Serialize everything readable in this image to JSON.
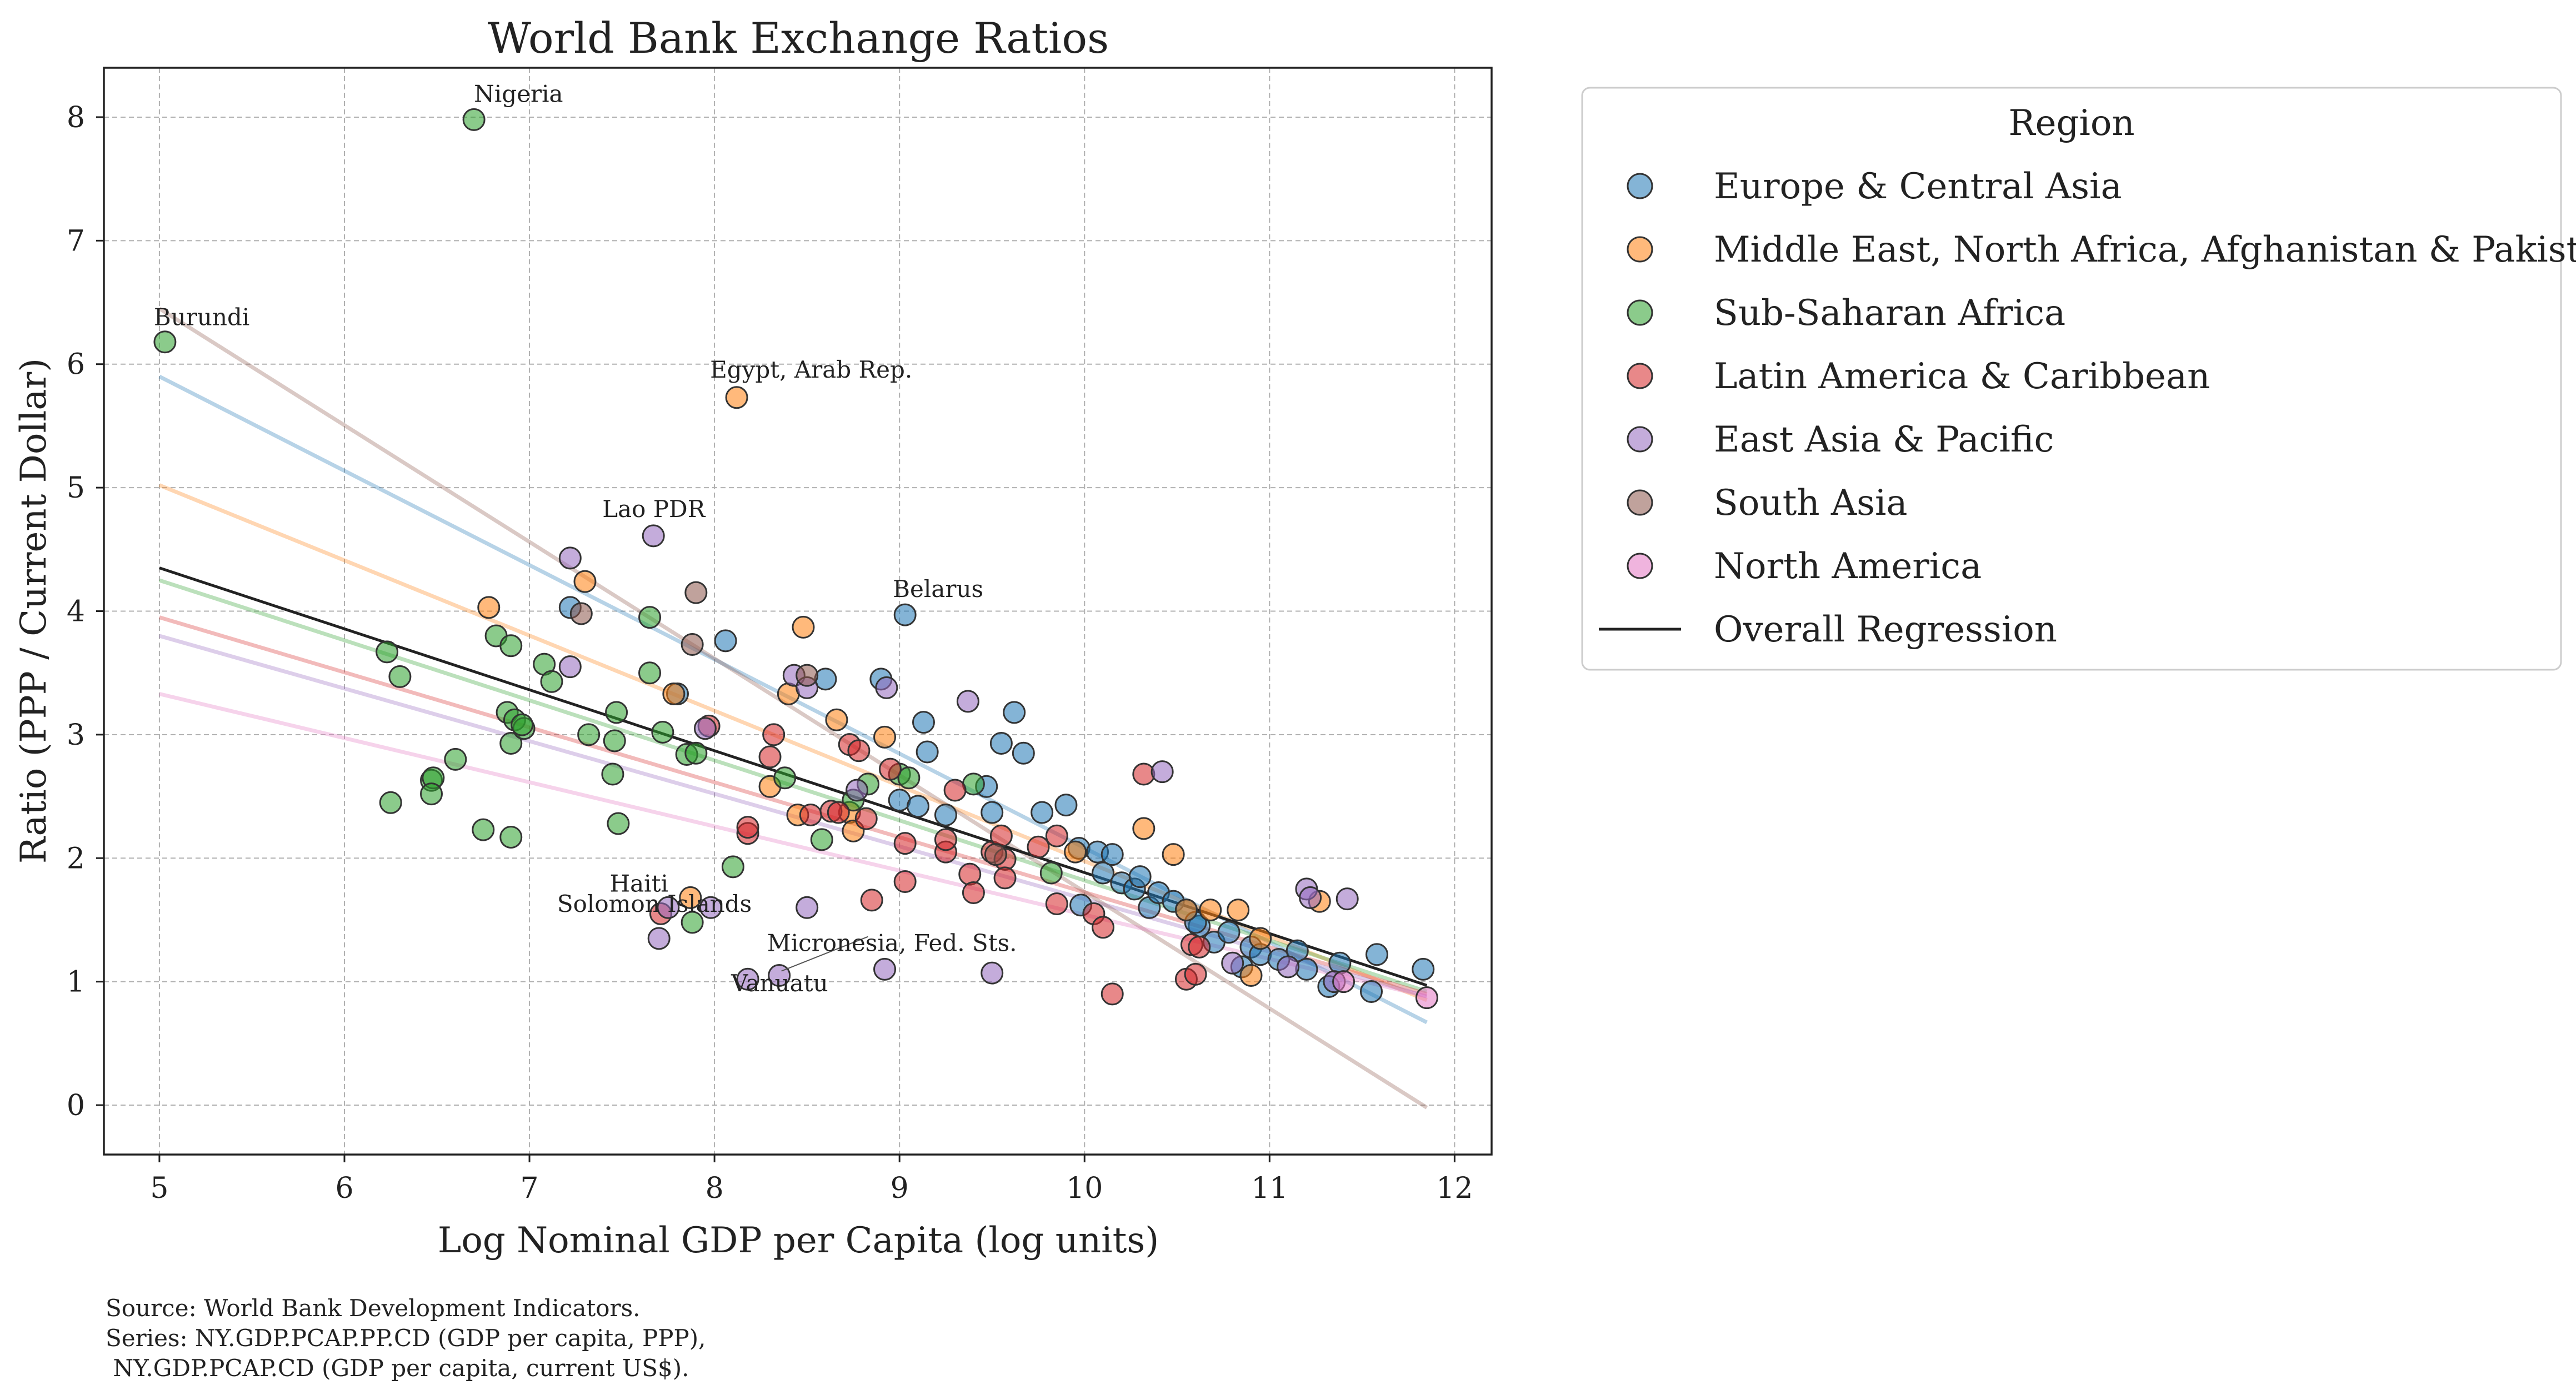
{
  "colors": {
    "europe": "#1f77b4",
    "mideast": "#ff7f0e",
    "ssa": "#2ca02c",
    "latam": "#d62728",
    "eap": "#9467bd",
    "sa": "#8c564b",
    "na": "#e377c2",
    "overall": "#222222"
  },
  "chart_data": {
    "type": "scatter",
    "title": "World Bank Exchange Ratios",
    "xlabel": "Log Nominal GDP per Capita (log units)",
    "ylabel": "Ratio (PPP / Current Dollar)",
    "xlim": [
      4.7,
      12.2
    ],
    "ylim": [
      -0.4,
      8.4
    ],
    "xticks": [
      5,
      6,
      7,
      8,
      9,
      10,
      11,
      12
    ],
    "yticks": [
      0,
      1,
      2,
      3,
      4,
      5,
      6,
      7,
      8
    ],
    "grid": true,
    "legend_title": "Region",
    "legend_position": "outside right",
    "overall_label": "Overall Regression",
    "overall_regression": {
      "x": [
        5.0,
        11.85
      ],
      "y": [
        4.35,
        0.97
      ]
    },
    "source_lines": [
      "Source: World Bank Development Indicators.",
      "Series: NY.GDP.PCAP.PP.CD (GDP per capita, PPP),",
      " NY.GDP.PCAP.CD (GDP per capita, current US$)."
    ],
    "annotations": [
      {
        "text": "Nigeria",
        "x": 6.7,
        "y": 7.98
      },
      {
        "text": "Burundi",
        "x": 5.03,
        "y": 6.18
      },
      {
        "text": "Egypt, Arab Rep.",
        "x": 8.12,
        "y": 5.73
      },
      {
        "text": "Lao PDR",
        "x": 7.67,
        "y": 4.61
      },
      {
        "text": "Belarus",
        "x": 9.03,
        "y": 3.97
      },
      {
        "text": "Haiti",
        "x": 7.71,
        "y": 1.55
      },
      {
        "text": "Solomon Islands",
        "x": 7.75,
        "y": 1.6
      },
      {
        "text": "Micronesia, Fed. Sts.",
        "x": 8.35,
        "y": 1.05
      },
      {
        "text": "Vanuatu",
        "x": 8.18,
        "y": 1.02
      }
    ],
    "series": [
      {
        "name": "Europe & Central Asia",
        "color_key": "europe",
        "regression": {
          "x": [
            5.0,
            11.85
          ],
          "y": [
            5.9,
            0.67
          ]
        },
        "points": [
          [
            7.22,
            4.03
          ],
          [
            7.8,
            3.33
          ],
          [
            8.06,
            3.76
          ],
          [
            8.6,
            3.45
          ],
          [
            8.9,
            3.45
          ],
          [
            9.03,
            3.97
          ],
          [
            9.13,
            3.1
          ],
          [
            9.15,
            2.86
          ],
          [
            9.47,
            2.58
          ],
          [
            9.55,
            2.93
          ],
          [
            9.62,
            3.18
          ],
          [
            9.67,
            2.85
          ],
          [
            9.77,
            2.37
          ],
          [
            9.9,
            2.43
          ],
          [
            9.97,
            2.08
          ],
          [
            10.07,
            2.05
          ],
          [
            10.1,
            1.88
          ],
          [
            10.15,
            2.03
          ],
          [
            10.2,
            1.8
          ],
          [
            10.27,
            1.75
          ],
          [
            10.3,
            1.85
          ],
          [
            10.35,
            1.6
          ],
          [
            10.4,
            1.72
          ],
          [
            10.48,
            1.65
          ],
          [
            10.55,
            1.58
          ],
          [
            10.62,
            1.45
          ],
          [
            10.7,
            1.32
          ],
          [
            10.78,
            1.4
          ],
          [
            10.85,
            1.12
          ],
          [
            10.9,
            1.28
          ],
          [
            10.95,
            1.22
          ],
          [
            11.05,
            1.18
          ],
          [
            11.15,
            1.25
          ],
          [
            11.2,
            1.1
          ],
          [
            11.32,
            0.96
          ],
          [
            11.38,
            1.15
          ],
          [
            11.55,
            0.92
          ],
          [
            11.58,
            1.22
          ],
          [
            11.83,
            1.1
          ],
          [
            9.0,
            2.47
          ],
          [
            9.1,
            2.42
          ],
          [
            9.25,
            2.35
          ],
          [
            9.5,
            2.37
          ],
          [
            9.98,
            1.62
          ],
          [
            10.6,
            1.48
          ]
        ]
      },
      {
        "name": "Middle East, North Africa, Afghanistan & Pakistan",
        "color_key": "mideast",
        "regression": {
          "x": [
            5.0,
            11.85
          ],
          "y": [
            5.02,
            0.85
          ]
        },
        "points": [
          [
            6.78,
            4.03
          ],
          [
            7.3,
            4.24
          ],
          [
            8.12,
            5.73
          ],
          [
            8.48,
            3.87
          ],
          [
            8.4,
            3.33
          ],
          [
            8.66,
            3.12
          ],
          [
            8.3,
            2.58
          ],
          [
            8.45,
            2.35
          ],
          [
            8.73,
            2.37
          ],
          [
            8.75,
            2.22
          ],
          [
            8.92,
            2.98
          ],
          [
            9.95,
            2.05
          ],
          [
            10.32,
            2.24
          ],
          [
            10.48,
            2.03
          ],
          [
            10.55,
            1.58
          ],
          [
            10.68,
            1.58
          ],
          [
            10.83,
            1.58
          ],
          [
            10.9,
            1.05
          ],
          [
            11.27,
            1.65
          ],
          [
            7.78,
            3.33
          ],
          [
            7.87,
            1.68
          ],
          [
            10.95,
            1.35
          ]
        ]
      },
      {
        "name": "Sub-Saharan Africa",
        "color_key": "ssa",
        "regression": {
          "x": [
            5.0,
            11.85
          ],
          "y": [
            4.25,
            0.92
          ]
        },
        "points": [
          [
            5.03,
            6.18
          ],
          [
            6.7,
            7.98
          ],
          [
            6.23,
            3.67
          ],
          [
            6.3,
            3.47
          ],
          [
            6.25,
            2.45
          ],
          [
            6.47,
            2.63
          ],
          [
            6.48,
            2.65
          ],
          [
            6.47,
            2.52
          ],
          [
            6.6,
            2.8
          ],
          [
            6.75,
            2.23
          ],
          [
            6.82,
            3.8
          ],
          [
            6.9,
            3.72
          ],
          [
            6.88,
            3.18
          ],
          [
            6.9,
            2.93
          ],
          [
            6.92,
            3.12
          ],
          [
            6.97,
            3.05
          ],
          [
            6.96,
            3.08
          ],
          [
            6.9,
            2.17
          ],
          [
            7.08,
            3.57
          ],
          [
            7.12,
            3.43
          ],
          [
            7.32,
            3.0
          ],
          [
            7.47,
            3.18
          ],
          [
            7.46,
            2.95
          ],
          [
            7.45,
            2.68
          ],
          [
            7.48,
            2.28
          ],
          [
            7.65,
            3.95
          ],
          [
            7.65,
            3.5
          ],
          [
            7.72,
            3.02
          ],
          [
            7.85,
            2.84
          ],
          [
            7.9,
            2.85
          ],
          [
            8.1,
            1.93
          ],
          [
            8.38,
            2.65
          ],
          [
            8.58,
            2.15
          ],
          [
            8.75,
            2.47
          ],
          [
            8.83,
            2.6
          ],
          [
            9.0,
            2.68
          ],
          [
            9.05,
            2.65
          ],
          [
            9.4,
            2.6
          ],
          [
            9.82,
            1.88
          ],
          [
            7.88,
            1.48
          ]
        ]
      },
      {
        "name": "Latin America & Caribbean",
        "color_key": "latam",
        "regression": {
          "x": [
            5.0,
            11.85
          ],
          "y": [
            3.95,
            0.9
          ]
        },
        "points": [
          [
            7.71,
            1.55
          ],
          [
            7.97,
            3.07
          ],
          [
            8.3,
            2.82
          ],
          [
            8.32,
            3.0
          ],
          [
            8.18,
            2.2
          ],
          [
            8.18,
            2.25
          ],
          [
            8.52,
            2.35
          ],
          [
            8.63,
            2.38
          ],
          [
            8.67,
            2.37
          ],
          [
            8.73,
            2.92
          ],
          [
            8.78,
            2.87
          ],
          [
            8.82,
            2.32
          ],
          [
            8.85,
            1.66
          ],
          [
            8.95,
            2.72
          ],
          [
            9.03,
            2.12
          ],
          [
            9.03,
            1.81
          ],
          [
            9.25,
            2.05
          ],
          [
            9.25,
            2.15
          ],
          [
            9.3,
            2.55
          ],
          [
            9.38,
            1.87
          ],
          [
            9.4,
            1.72
          ],
          [
            9.5,
            2.05
          ],
          [
            9.55,
            2.18
          ],
          [
            9.57,
            1.99
          ],
          [
            9.57,
            1.84
          ],
          [
            9.75,
            2.09
          ],
          [
            9.85,
            2.18
          ],
          [
            9.85,
            1.63
          ],
          [
            10.05,
            1.55
          ],
          [
            10.1,
            1.44
          ],
          [
            10.15,
            0.9
          ],
          [
            10.32,
            2.68
          ],
          [
            10.55,
            1.02
          ],
          [
            10.58,
            1.3
          ],
          [
            10.6,
            1.06
          ],
          [
            10.62,
            1.28
          ]
        ]
      },
      {
        "name": "East Asia & Pacific",
        "color_key": "eap",
        "regression": {
          "x": [
            5.0,
            11.85
          ],
          "y": [
            3.8,
            0.88
          ]
        },
        "points": [
          [
            7.67,
            4.61
          ],
          [
            7.22,
            4.43
          ],
          [
            7.22,
            3.55
          ],
          [
            7.7,
            1.35
          ],
          [
            7.75,
            1.6
          ],
          [
            7.98,
            1.6
          ],
          [
            8.18,
            1.02
          ],
          [
            8.35,
            1.05
          ],
          [
            8.43,
            3.48
          ],
          [
            8.5,
            3.38
          ],
          [
            8.5,
            1.6
          ],
          [
            8.93,
            3.38
          ],
          [
            8.92,
            1.1
          ],
          [
            8.77,
            2.55
          ],
          [
            9.37,
            3.27
          ],
          [
            9.5,
            1.07
          ],
          [
            10.42,
            2.7
          ],
          [
            10.8,
            1.15
          ],
          [
            11.1,
            1.12
          ],
          [
            11.2,
            1.75
          ],
          [
            11.22,
            1.68
          ],
          [
            11.35,
            1.0
          ],
          [
            11.42,
            1.67
          ],
          [
            7.95,
            3.05
          ]
        ]
      },
      {
        "name": "South Asia",
        "color_key": "sa",
        "regression": {
          "x": [
            5.0,
            11.85
          ],
          "y": [
            6.45,
            -0.02
          ]
        },
        "points": [
          [
            7.28,
            3.98
          ],
          [
            7.9,
            4.15
          ],
          [
            7.88,
            3.73
          ],
          [
            8.5,
            3.48
          ],
          [
            9.52,
            2.03
          ]
        ]
      },
      {
        "name": "North America",
        "color_key": "na",
        "regression": {
          "x": [
            5.0,
            11.85
          ],
          "y": [
            3.33,
            0.88
          ]
        },
        "points": [
          [
            11.85,
            0.87
          ],
          [
            11.4,
            1.0
          ]
        ]
      }
    ]
  }
}
